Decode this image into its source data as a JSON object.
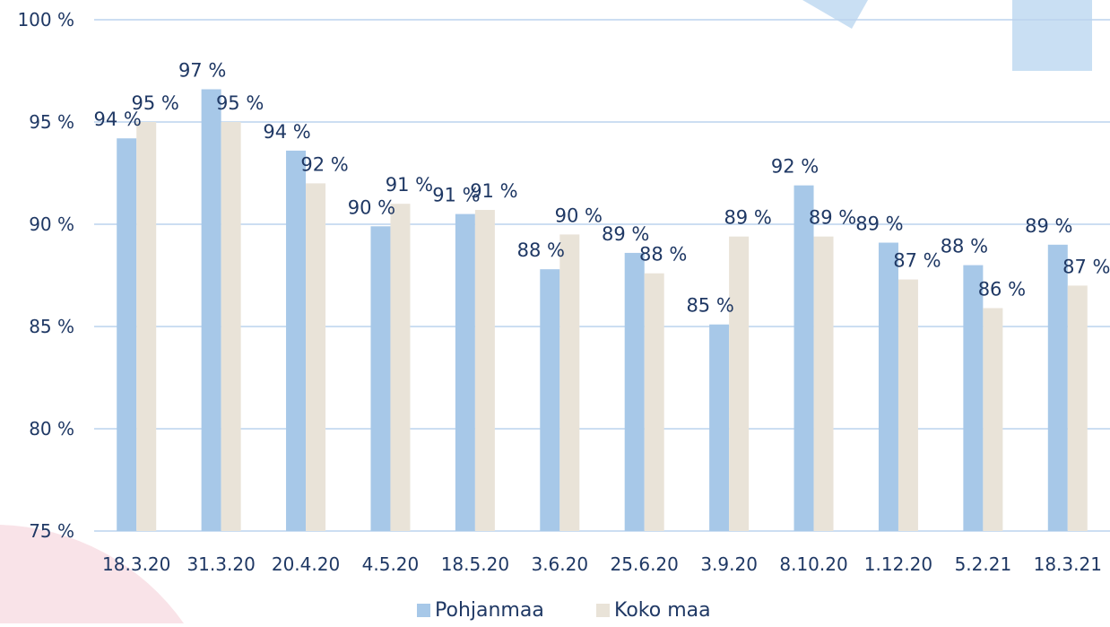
{
  "colors": {
    "pohjanmaa": "#a7c8e8",
    "koko_maa": "#e9e3d8",
    "gridline": "#bcd3ee",
    "axis_text": "#1f3864",
    "decor_blue": "#c9dff3",
    "decor_pink": "#f9e3e8"
  },
  "chart_data": {
    "type": "bar",
    "categories": [
      "18.3.20",
      "31.3.20",
      "20.4.20",
      "4.5.20",
      "18.5.20",
      "3.6.20",
      "25.6.20",
      "3.9.20",
      "8.10.20",
      "1.12.20",
      "5.2.21",
      "18.3.21"
    ],
    "series": [
      {
        "name": "Pohjanmaa",
        "values": [
          94.2,
          96.6,
          93.6,
          89.9,
          90.5,
          87.8,
          88.6,
          85.1,
          91.9,
          89.1,
          88.0,
          89.0
        ],
        "labels": [
          "94 %",
          "97 %",
          "94 %",
          "90 %",
          "91 %",
          "88 %",
          "89 %",
          "85 %",
          "92 %",
          "89 %",
          "88 %",
          "89 %"
        ]
      },
      {
        "name": "Koko maa",
        "values": [
          95.0,
          95.0,
          92.0,
          91.0,
          90.7,
          89.5,
          87.6,
          89.4,
          89.4,
          87.3,
          85.9,
          87.0
        ],
        "labels": [
          "95 %",
          "95 %",
          "92 %",
          "91 %",
          "91 %",
          "90 %",
          "88 %",
          "89 %",
          "89 %",
          "87 %",
          "86 %",
          "87 %"
        ]
      }
    ],
    "ylim": [
      75,
      100
    ],
    "yticks": [
      75,
      80,
      85,
      90,
      95,
      100
    ],
    "ytick_labels": [
      "75 %",
      "80 %",
      "85 %",
      "90 %",
      "95 %",
      "100 %"
    ],
    "grid": true,
    "legend": "bottom-center"
  }
}
